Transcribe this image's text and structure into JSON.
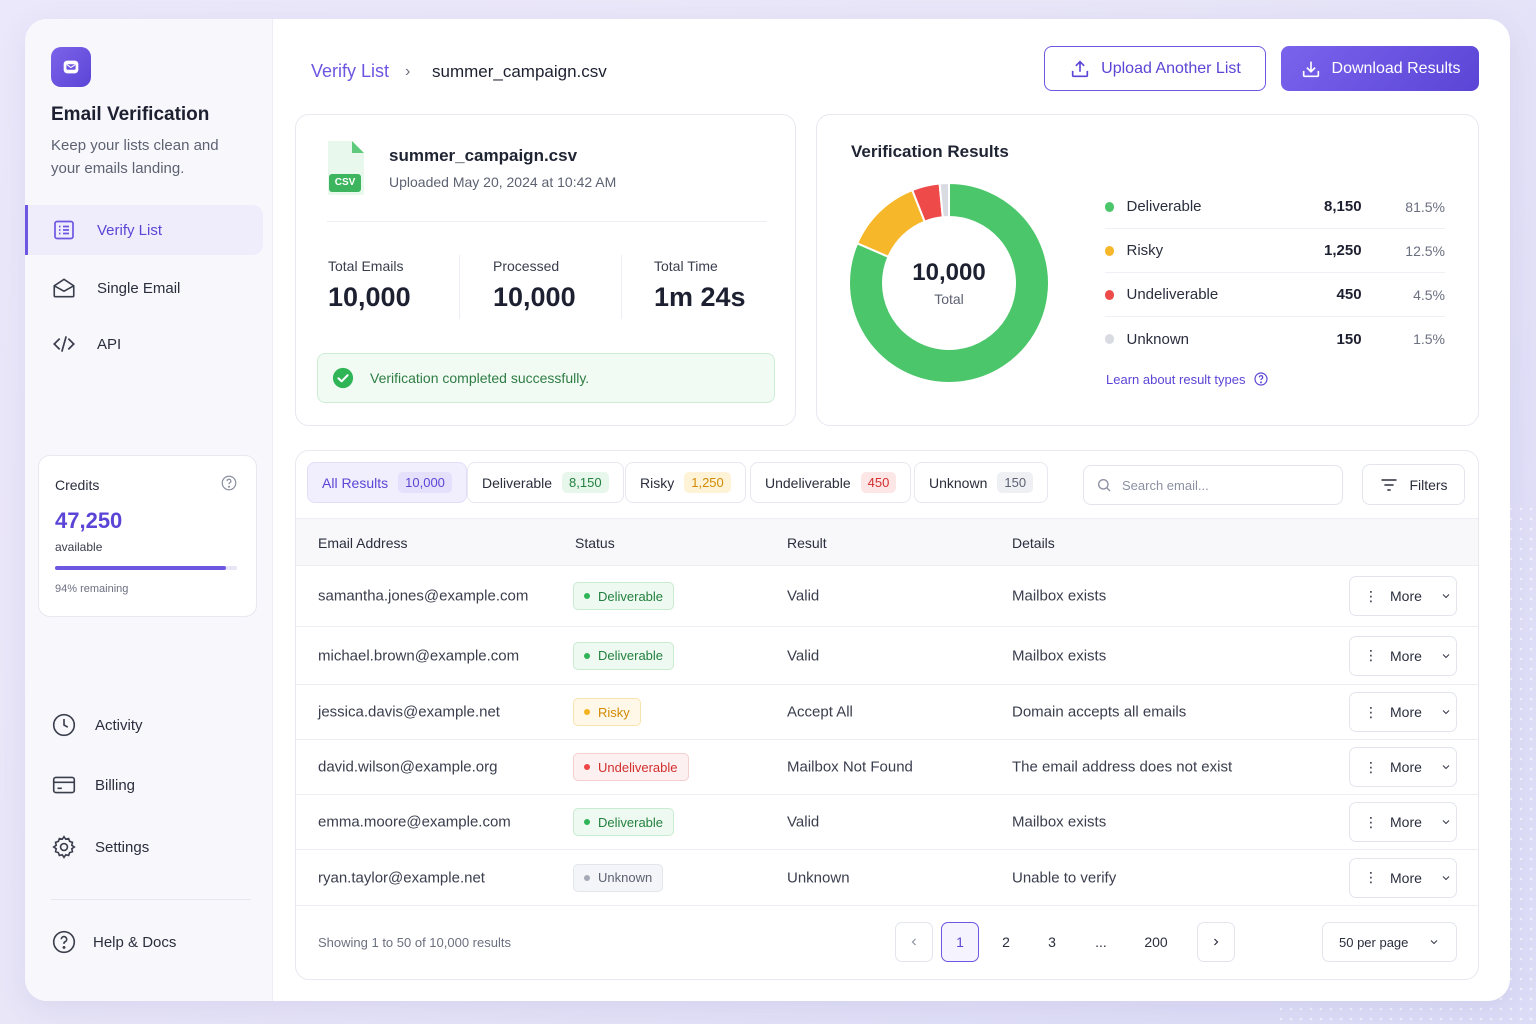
{
  "sidebar": {
    "brand_title": "Email Verification",
    "brand_subtitle": "Keep your lists clean and your emails landing.",
    "nav": [
      {
        "label": "Verify List",
        "icon": "list-icon"
      },
      {
        "label": "Single Email",
        "icon": "envelope-icon"
      },
      {
        "label": "API",
        "icon": "code-icon"
      }
    ],
    "credits": {
      "label": "Credits",
      "value": "47,250",
      "available_label": "available",
      "remaining_label": "94% remaining",
      "remaining_fraction": 0.94
    },
    "bottom_nav": [
      {
        "label": "Activity",
        "icon": "clock-icon"
      },
      {
        "label": "Billing",
        "icon": "card-icon"
      },
      {
        "label": "Settings",
        "icon": "gear-icon"
      }
    ],
    "help_label": "Help & Docs"
  },
  "header": {
    "breadcrumb_root": "Verify List",
    "breadcrumb_current": "summer_campaign.csv",
    "upload_label": "Upload Another List",
    "download_label": "Download Results"
  },
  "file": {
    "name": "summer_campaign.csv",
    "badge": "CSV",
    "uploaded": "Uploaded May 20, 2024 at 10:42 AM",
    "stats": [
      {
        "label": "Total Emails",
        "value": "10,000"
      },
      {
        "label": "Processed",
        "value": "10,000"
      },
      {
        "label": "Total Time",
        "value": "1m 24s"
      }
    ],
    "success_message": "Verification completed successfully."
  },
  "results": {
    "title": "Verification Results",
    "total_value": "10,000",
    "total_label": "Total",
    "learn_label": "Learn about result types",
    "colors": {
      "deliverable": "#4cc66a",
      "risky": "#f7b72a",
      "undeliverable": "#ee4a4a",
      "unknown": "#d9dbe2"
    },
    "items": [
      {
        "name": "Deliverable",
        "count": "8,150",
        "percent": "81.5%",
        "value": 8150,
        "color": "#4cc66a"
      },
      {
        "name": "Risky",
        "count": "1,250",
        "percent": "12.5%",
        "value": 1250,
        "color": "#f7b72a"
      },
      {
        "name": "Undeliverable",
        "count": "450",
        "percent": "4.5%",
        "value": 450,
        "color": "#ee4a4a"
      },
      {
        "name": "Unknown",
        "count": "150",
        "percent": "1.5%",
        "value": 150,
        "color": "#d9dbe2"
      }
    ]
  },
  "table": {
    "tabs": [
      {
        "label": "All Results",
        "count": "10,000"
      },
      {
        "label": "Deliverable",
        "count": "8,150"
      },
      {
        "label": "Risky",
        "count": "1,250"
      },
      {
        "label": "Undeliverable",
        "count": "450"
      },
      {
        "label": "Unknown",
        "count": "150"
      }
    ],
    "search_placeholder": "Search email...",
    "filters_label": "Filters",
    "columns": [
      "Email Address",
      "Status",
      "Result",
      "Details"
    ],
    "more_label": "More",
    "rows": [
      {
        "email": "samantha.jones@example.com",
        "status": "Deliverable",
        "status_kind": "deliverable",
        "result": "Valid",
        "details": "Mailbox exists"
      },
      {
        "email": "michael.brown@example.com",
        "status": "Deliverable",
        "status_kind": "deliverable",
        "result": "Valid",
        "details": "Mailbox exists"
      },
      {
        "email": "jessica.davis@example.net",
        "status": "Risky",
        "status_kind": "risky",
        "result": "Accept All",
        "details": "Domain accepts all emails"
      },
      {
        "email": "david.wilson@example.org",
        "status": "Undeliverable",
        "status_kind": "undeliverable",
        "result": "Mailbox Not Found",
        "details": "The email address does not exist"
      },
      {
        "email": "emma.moore@example.com",
        "status": "Deliverable",
        "status_kind": "deliverable",
        "result": "Valid",
        "details": "Mailbox exists"
      },
      {
        "email": "ryan.taylor@example.net",
        "status": "Unknown",
        "status_kind": "unknown",
        "result": "Unknown",
        "details": "Unable to verify"
      }
    ],
    "showing": "Showing 1 to 50 of 10,000 results",
    "pages": [
      "1",
      "2",
      "3",
      "...",
      "200"
    ],
    "per_page": "50 per page"
  }
}
